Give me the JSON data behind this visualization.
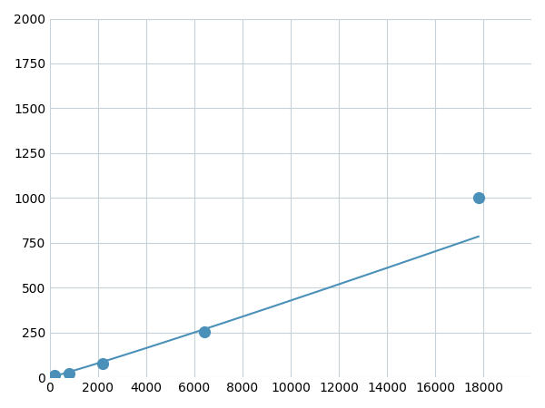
{
  "x": [
    200,
    800,
    2200,
    6400,
    17800
  ],
  "y": [
    10,
    20,
    75,
    255,
    1000
  ],
  "line_color": "#4a90b8",
  "marker_color": "#4a90b8",
  "marker_size": 6,
  "line_width": 1.5,
  "xlim": [
    0,
    20000
  ],
  "ylim": [
    0,
    2000
  ],
  "xticks": [
    0,
    2000,
    4000,
    6000,
    8000,
    10000,
    12000,
    14000,
    16000,
    18000
  ],
  "yticks": [
    0,
    250,
    500,
    750,
    1000,
    1250,
    1500,
    1750,
    2000
  ],
  "grid_color": "#c8d0d8",
  "background_color": "#ffffff",
  "tick_fontsize": 10
}
